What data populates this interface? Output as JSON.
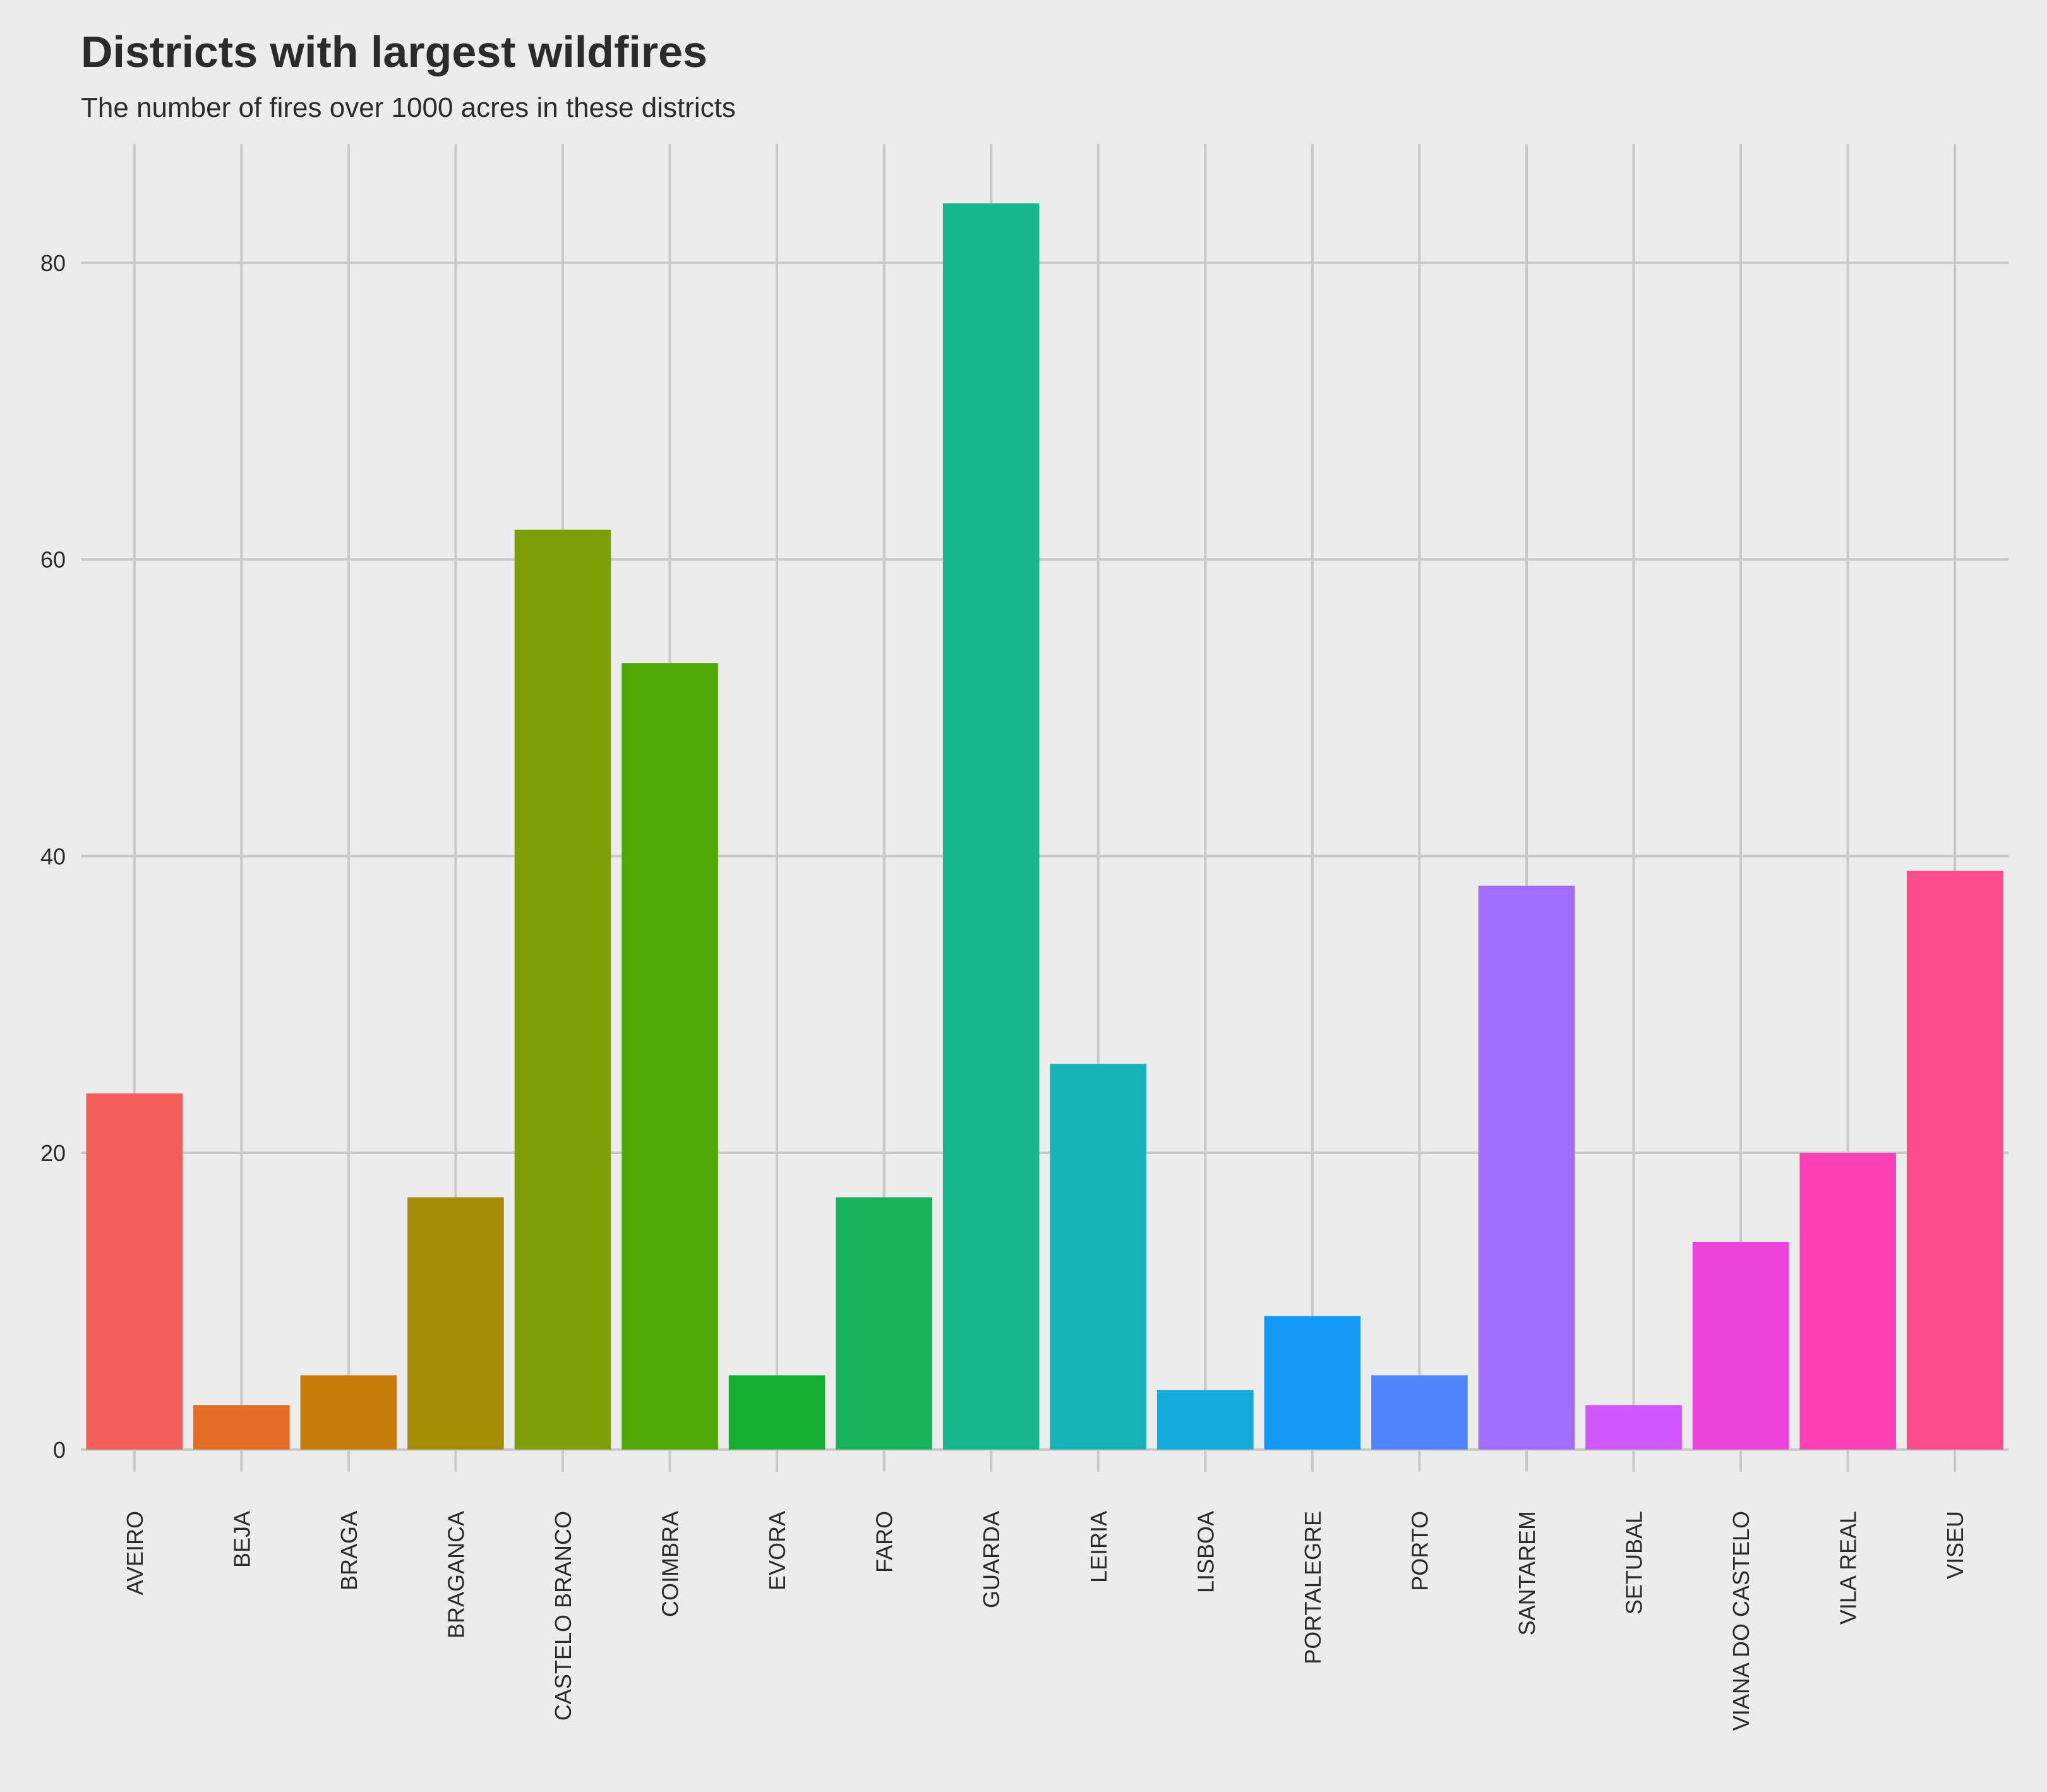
{
  "chart_data": {
    "type": "bar",
    "title": "Districts with largest wildfires",
    "subtitle": "The number of fires over 1000 acres in these districts",
    "xlabel": "",
    "ylabel": "",
    "categories": [
      "AVEIRO",
      "BEJA",
      "BRAGA",
      "BRAGANCA",
      "CASTELO BRANCO",
      "COIMBRA",
      "EVORA",
      "FARO",
      "GUARDA",
      "LEIRIA",
      "LISBOA",
      "PORTALEGRE",
      "PORTO",
      "SANTAREM",
      "SETUBAL",
      "VIANA DO CASTELO",
      "VILA REAL",
      "VISEU"
    ],
    "values": [
      24,
      3,
      5,
      17,
      62,
      53,
      5,
      17,
      84,
      26,
      4,
      9,
      5,
      38,
      3,
      14,
      20,
      39
    ],
    "colors": [
      "#F35E5A",
      "#E16E24",
      "#C77D0A",
      "#A48D05",
      "#7F9D06",
      "#4EA805",
      "#15AF31",
      "#17B35A",
      "#17B78D",
      "#17B3B8",
      "#14AADB",
      "#1499F6",
      "#4F84FD",
      "#A06DFE",
      "#D057FE",
      "#EC43DA",
      "#FD40B5",
      "#FD4C8C"
    ],
    "ylim": [
      -1.5,
      88
    ],
    "yticks": [
      0,
      20,
      40,
      60,
      80
    ],
    "ytick_labels": [
      "0",
      "20",
      "40",
      "60",
      "80"
    ],
    "grid": true,
    "legend": "none",
    "background": "#ECECEC",
    "gridline_color": "#C9C9C9"
  }
}
